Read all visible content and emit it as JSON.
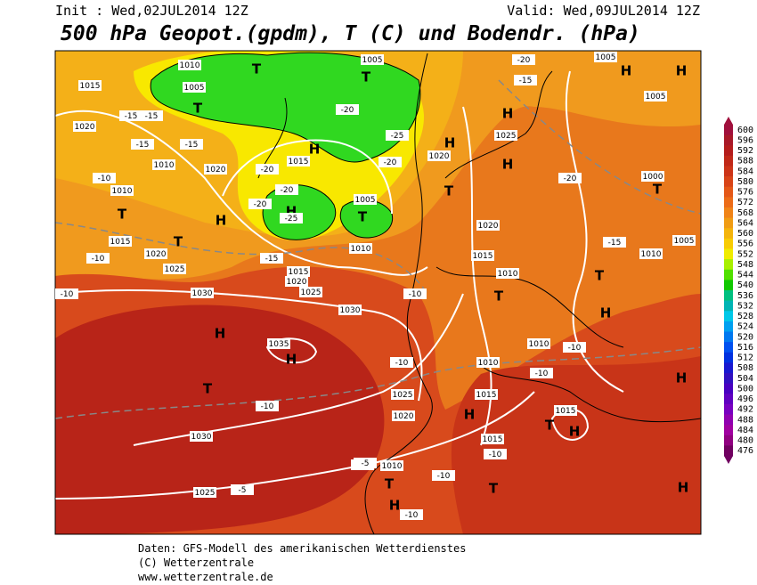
{
  "header": {
    "init": "Init : Wed,02JUL2014  12Z",
    "valid": "Valid: Wed,09JUL2014  12Z",
    "title": "500 hPa Geopot.(gpdm), T (C) und Bodendr. (hPa)"
  },
  "footer": [
    "Daten: GFS-Modell des amerikanischen Wetterdienstes",
    "(C) Wetterzentrale",
    "www.wetterzentrale.de"
  ],
  "colorbar": {
    "labels": [
      600,
      596,
      592,
      588,
      584,
      580,
      576,
      572,
      568,
      564,
      560,
      556,
      552,
      548,
      544,
      540,
      536,
      532,
      528,
      524,
      520,
      516,
      512,
      508,
      504,
      500,
      496,
      492,
      488,
      484,
      480,
      476
    ],
    "colors": [
      "#a0103c",
      "#a81828",
      "#b41c1c",
      "#c02818",
      "#cc3418",
      "#d84418",
      "#e45818",
      "#ec6c18",
      "#f08418",
      "#f09c14",
      "#f4b40c",
      "#f8cc04",
      "#f0ec00",
      "#a8f000",
      "#50e000",
      "#10c800",
      "#00c080",
      "#00b4b4",
      "#00c8e8",
      "#00a0f0",
      "#0078f0",
      "#0050f0",
      "#0030e0",
      "#1818d0",
      "#3010c0",
      "#4800c0",
      "#6000c0",
      "#7800c0",
      "#9000b0",
      "#a000a0",
      "#900080",
      "#700060"
    ]
  },
  "map": {
    "centers": [
      "H",
      "H",
      "H",
      "H",
      "H",
      "H",
      "H",
      "H",
      "H",
      "H",
      "H",
      "H",
      "H",
      "H",
      "H",
      "H",
      "T",
      "T",
      "T",
      "T",
      "T",
      "T",
      "T",
      "T",
      "T",
      "T",
      "T",
      "T",
      "T",
      "T"
    ],
    "numbers": [
      "1010",
      "1005",
      "1005",
      "1015",
      "1020",
      "1010",
      "1020",
      "1015",
      "1010",
      "1015",
      "1020",
      "1025",
      "1030",
      "1015",
      "1020",
      "1025",
      "1030",
      "1035",
      "1030",
      "1025",
      "1010",
      "1005",
      "1025",
      "1020",
      "1020",
      "1015",
      "1010",
      "1005",
      "1005",
      "1000",
      "1010",
      "1005",
      "1010",
      "1010",
      "1015",
      "1025",
      "1020",
      "1015",
      "1015",
      "1010",
      "-20",
      "-15",
      "-15",
      "-15",
      "-15",
      "-15",
      "-20",
      "-20",
      "-25",
      "-20",
      "-20",
      "-25",
      "-20",
      "-10",
      "-10",
      "-15",
      "-10",
      "-10",
      "-10",
      "-10",
      "-10",
      "-5",
      "-10",
      "-5",
      "-5",
      "-10",
      "-10",
      "-10",
      "-20",
      "-15"
    ]
  }
}
